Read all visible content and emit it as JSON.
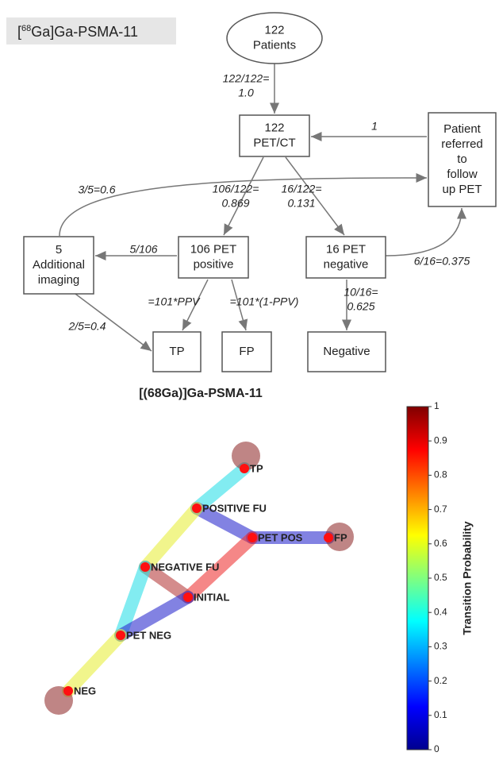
{
  "flow": {
    "tag": {
      "prefix": "[",
      "sup": "68",
      "suffix": "Ga]Ga-PSMA-11"
    },
    "nodes": [
      {
        "lines": [
          "122",
          "Patients"
        ]
      },
      {
        "lines": [
          "122",
          "PET/CT"
        ]
      },
      {
        "lines": [
          "Patient",
          "referred",
          "to",
          "follow",
          "up PET"
        ]
      },
      {
        "lines": [
          "5",
          "Additional",
          "imaging"
        ]
      },
      {
        "lines": [
          "106 PET",
          "positive"
        ]
      },
      {
        "lines": [
          "16 PET",
          "negative"
        ]
      },
      {
        "lines": [
          "TP"
        ]
      },
      {
        "lines": [
          "FP"
        ]
      },
      {
        "lines": [
          "Negative"
        ]
      }
    ],
    "edge_labels": [
      {
        "lines": [
          "122/122=",
          "1.0"
        ]
      },
      {
        "lines": [
          "1"
        ]
      },
      {
        "lines": [
          "3/5=0.6"
        ]
      },
      {
        "lines": [
          "106/122=",
          "0.869"
        ]
      },
      {
        "lines": [
          "16/122=",
          "0.131"
        ]
      },
      {
        "lines": [
          "5/106"
        ]
      },
      {
        "lines": [
          "6/16=0.375"
        ]
      },
      {
        "lines": [
          "=101*PPV"
        ]
      },
      {
        "lines": [
          "=101*(1-PPV)"
        ]
      },
      {
        "lines": [
          "10/16=",
          "0.625"
        ]
      },
      {
        "lines": [
          "2/5=0.4"
        ]
      }
    ]
  },
  "graph": {
    "title": "[(68Ga)]Ga-PSMA-11",
    "nodes": [
      "TP",
      "POSITIVE FU",
      "PET POS",
      "FP",
      "NEGATIVE FU",
      "INITIAL",
      "PET NEG",
      "NEG"
    ],
    "colorbar": {
      "label": "Transition Probability",
      "ticks": [
        0,
        0.1,
        0.2,
        0.3,
        0.4,
        0.5,
        0.6,
        0.7,
        0.8,
        0.9,
        1
      ]
    }
  }
}
